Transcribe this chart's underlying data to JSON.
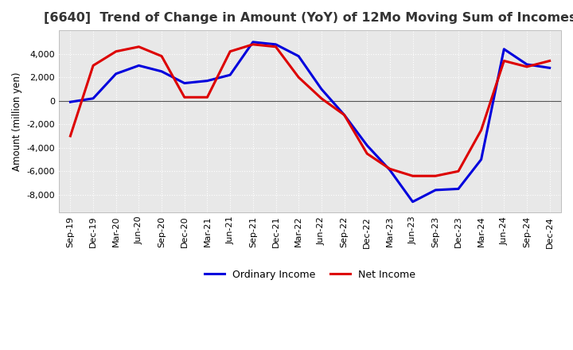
{
  "title": "[6640]  Trend of Change in Amount (YoY) of 12Mo Moving Sum of Incomes",
  "ylabel": "Amount (million yen)",
  "background_color": "#ffffff",
  "plot_background": "#e8e8e8",
  "grid_color": "#ffffff",
  "title_fontsize": 11.5,
  "x_labels": [
    "Sep-19",
    "Dec-19",
    "Mar-20",
    "Jun-20",
    "Sep-20",
    "Dec-20",
    "Mar-21",
    "Jun-21",
    "Sep-21",
    "Dec-21",
    "Mar-22",
    "Jun-22",
    "Sep-22",
    "Dec-22",
    "Mar-23",
    "Jun-23",
    "Sep-23",
    "Dec-23",
    "Mar-24",
    "Jun-24",
    "Sep-24",
    "Dec-24"
  ],
  "ordinary_income": [
    -100,
    200,
    2300,
    3000,
    2500,
    1500,
    1700,
    2200,
    5000,
    4800,
    3800,
    1000,
    -1200,
    -3800,
    -5900,
    -8600,
    -7600,
    -7500,
    -5000,
    4400,
    3100,
    2800
  ],
  "net_income": [
    -3000,
    3000,
    4200,
    4600,
    3800,
    300,
    300,
    4200,
    4800,
    4600,
    2000,
    200,
    -1200,
    -4500,
    -5800,
    -6400,
    -6400,
    -6000,
    -2500,
    3400,
    2900,
    3400
  ],
  "ordinary_color": "#0000dd",
  "net_color": "#dd0000",
  "ylim": [
    -9500,
    6000
  ],
  "yticks": [
    -8000,
    -6000,
    -4000,
    -2000,
    0,
    2000,
    4000
  ],
  "line_width": 2.2
}
